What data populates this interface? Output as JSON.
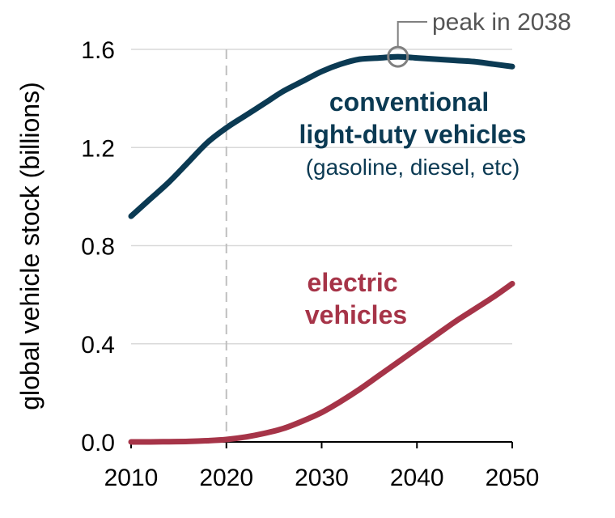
{
  "chart_data": {
    "type": "line",
    "ylabel": "global vehicle stock (billions)",
    "xlim": [
      2010,
      2050
    ],
    "ylim": [
      0,
      1.6
    ],
    "x_ticks": [
      "2010",
      "2020",
      "2030",
      "2040",
      "2050"
    ],
    "y_ticks": [
      "0.0",
      "0.4",
      "0.8",
      "1.2",
      "1.6"
    ],
    "grid": "horizontal",
    "reference_line_x": 2020,
    "series": [
      {
        "name": "conventional light-duty vehicles",
        "sublabel": "(gasoline, diesel, etc)",
        "color": "#0b3a53",
        "x": [
          2010,
          2012,
          2014,
          2016,
          2018,
          2020,
          2022,
          2024,
          2026,
          2028,
          2030,
          2032,
          2034,
          2036,
          2038,
          2040,
          2042,
          2044,
          2046,
          2048,
          2050
        ],
        "y": [
          0.92,
          0.99,
          1.06,
          1.14,
          1.22,
          1.28,
          1.33,
          1.38,
          1.43,
          1.47,
          1.51,
          1.54,
          1.56,
          1.565,
          1.57,
          1.565,
          1.56,
          1.555,
          1.55,
          1.54,
          1.53
        ]
      },
      {
        "name": "electric vehicles",
        "color": "#a63448",
        "x": [
          2010,
          2012,
          2014,
          2016,
          2018,
          2020,
          2022,
          2024,
          2026,
          2028,
          2030,
          2032,
          2034,
          2036,
          2038,
          2040,
          2042,
          2044,
          2046,
          2048,
          2050
        ],
        "y": [
          0.0,
          0.0,
          0.001,
          0.002,
          0.005,
          0.01,
          0.02,
          0.035,
          0.055,
          0.085,
          0.12,
          0.165,
          0.215,
          0.27,
          0.325,
          0.38,
          0.435,
          0.49,
          0.54,
          0.59,
          0.645
        ]
      }
    ],
    "annotation": {
      "text": "peak in 2038",
      "x": 2038,
      "y": 1.57
    }
  }
}
